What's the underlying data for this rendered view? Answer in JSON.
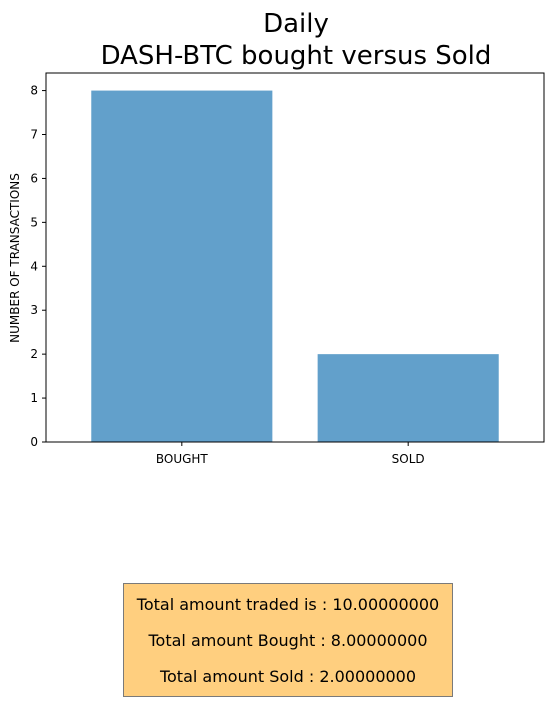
{
  "chart_data": {
    "type": "bar",
    "title_lines": [
      "Daily",
      "DASH-BTC bought versus Sold"
    ],
    "categories": [
      "BOUGHT",
      "SOLD"
    ],
    "values": [
      8,
      2
    ],
    "xlabel": "",
    "ylabel": "NUMBER OF TRANSACTIONS",
    "ylim": [
      0,
      8.4
    ],
    "yticks": [
      0,
      1,
      2,
      3,
      4,
      5,
      6,
      7,
      8
    ],
    "grid": false,
    "bar_color": "#62a0cb"
  },
  "summary": {
    "lines": [
      "Total amount traded is : 10.00000000",
      "Total amount Bought : 8.00000000",
      "Total amount Sold : 2.00000000"
    ],
    "background_color": "#ffcf7f"
  }
}
